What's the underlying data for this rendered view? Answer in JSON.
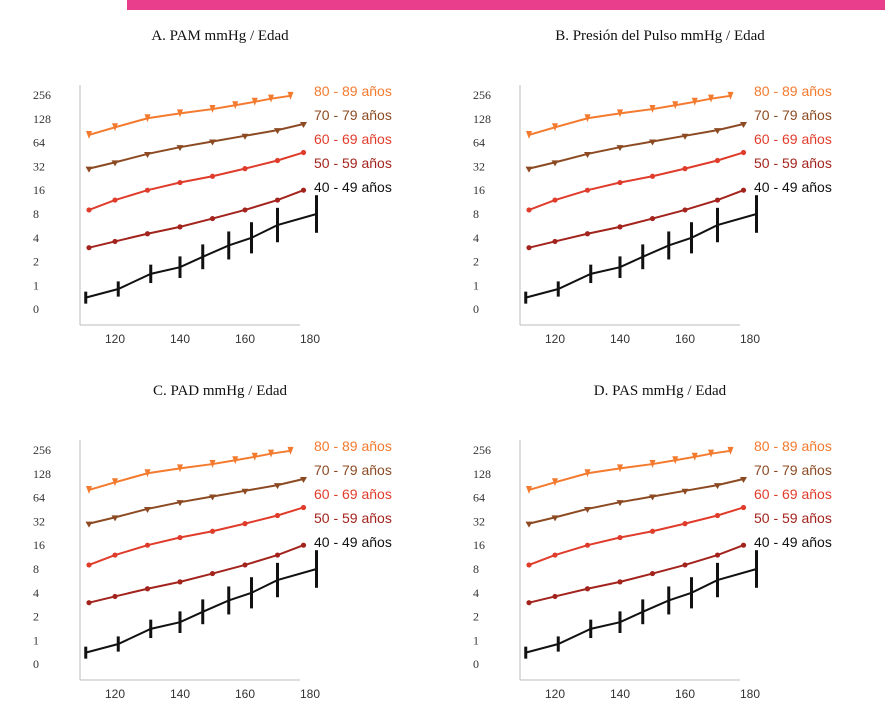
{
  "top_bar_color": "#e83e8c",
  "chart_data": [
    {
      "type": "line",
      "title": "A. PAM mmHg / Edad",
      "xlabel": "",
      "ylabel": "",
      "x_ticks": [
        120,
        140,
        160,
        180
      ],
      "y_ticks": [
        "0",
        "1",
        "2",
        "4",
        "8",
        "16",
        "32",
        "64",
        "128",
        "256"
      ],
      "xlim": [
        110,
        190
      ],
      "series": [
        {
          "name": "80 - 89 años",
          "color": "#f47a2e",
          "x": [
            112,
            120,
            130,
            140,
            150,
            157,
            163,
            168,
            174
          ],
          "y": [
            80,
            100,
            130,
            150,
            170,
            190,
            210,
            230,
            250
          ]
        },
        {
          "name": "70 - 79 años",
          "color": "#8c4a22",
          "x": [
            112,
            120,
            130,
            140,
            150,
            160,
            170,
            178
          ],
          "y": [
            30,
            36,
            46,
            56,
            66,
            78,
            92,
            110
          ]
        },
        {
          "name": "60 - 69 años",
          "color": "#e03c2b",
          "x": [
            112,
            120,
            130,
            140,
            150,
            160,
            170,
            178
          ],
          "y": [
            9,
            12,
            16,
            20,
            24,
            30,
            38,
            48
          ]
        },
        {
          "name": "50 - 59 años",
          "color": "#a3231d",
          "x": [
            112,
            120,
            130,
            140,
            150,
            160,
            170,
            178
          ],
          "y": [
            3,
            3.6,
            4.5,
            5.5,
            7,
            9,
            12,
            16
          ]
        },
        {
          "name": "40 - 49 años",
          "color": "#111111",
          "x": [
            111,
            121,
            131,
            140,
            147,
            155,
            162,
            170,
            182
          ],
          "y": [
            0.7,
            0.9,
            1.4,
            1.7,
            2.3,
            3.2,
            4.0,
            5.8,
            8.0
          ]
        }
      ]
    },
    {
      "type": "line",
      "title": "B. Presión del Pulso mmHg / Edad",
      "xlabel": "",
      "ylabel": "",
      "x_ticks": [
        120,
        140,
        160,
        180
      ],
      "y_ticks": [
        "0",
        "1",
        "2",
        "4",
        "8",
        "16",
        "32",
        "64",
        "128",
        "256"
      ],
      "xlim": [
        110,
        190
      ],
      "series": [
        {
          "name": "80 - 89 años",
          "color": "#f47a2e",
          "x": [
            112,
            120,
            130,
            140,
            150,
            157,
            163,
            168,
            174
          ],
          "y": [
            80,
            100,
            130,
            150,
            170,
            190,
            210,
            230,
            250
          ]
        },
        {
          "name": "70 - 79 años",
          "color": "#8c4a22",
          "x": [
            112,
            120,
            130,
            140,
            150,
            160,
            170,
            178
          ],
          "y": [
            30,
            36,
            46,
            56,
            66,
            78,
            92,
            110
          ]
        },
        {
          "name": "60 - 69 años",
          "color": "#e03c2b",
          "x": [
            112,
            120,
            130,
            140,
            150,
            160,
            170,
            178
          ],
          "y": [
            9,
            12,
            16,
            20,
            24,
            30,
            38,
            48
          ]
        },
        {
          "name": "50 - 59 años",
          "color": "#a3231d",
          "x": [
            112,
            120,
            130,
            140,
            150,
            160,
            170,
            178
          ],
          "y": [
            3,
            3.6,
            4.5,
            5.5,
            7,
            9,
            12,
            16
          ]
        },
        {
          "name": "40 - 49 años",
          "color": "#111111",
          "x": [
            111,
            121,
            131,
            140,
            147,
            155,
            162,
            170,
            182
          ],
          "y": [
            0.7,
            0.9,
            1.4,
            1.7,
            2.3,
            3.2,
            4.0,
            5.8,
            8.0
          ]
        }
      ]
    },
    {
      "type": "line",
      "title": "C. PAD mmHg / Edad",
      "xlabel": "",
      "ylabel": "",
      "x_ticks": [
        120,
        140,
        160,
        180
      ],
      "y_ticks": [
        "0",
        "1",
        "2",
        "4",
        "8",
        "16",
        "32",
        "64",
        "128",
        "256"
      ],
      "xlim": [
        110,
        190
      ],
      "series": [
        {
          "name": "80 - 89 años",
          "color": "#f47a2e",
          "x": [
            112,
            120,
            130,
            140,
            150,
            157,
            163,
            168,
            174
          ],
          "y": [
            80,
            100,
            130,
            150,
            170,
            190,
            210,
            230,
            250
          ]
        },
        {
          "name": "70 - 79 años",
          "color": "#8c4a22",
          "x": [
            112,
            120,
            130,
            140,
            150,
            160,
            170,
            178
          ],
          "y": [
            30,
            36,
            46,
            56,
            66,
            78,
            92,
            110
          ]
        },
        {
          "name": "60 - 69 años",
          "color": "#e03c2b",
          "x": [
            112,
            120,
            130,
            140,
            150,
            160,
            170,
            178
          ],
          "y": [
            9,
            12,
            16,
            20,
            24,
            30,
            38,
            48
          ]
        },
        {
          "name": "50 - 59 años",
          "color": "#a3231d",
          "x": [
            112,
            120,
            130,
            140,
            150,
            160,
            170,
            178
          ],
          "y": [
            3,
            3.6,
            4.5,
            5.5,
            7,
            9,
            12,
            16
          ]
        },
        {
          "name": "40 - 49 años",
          "color": "#111111",
          "x": [
            111,
            121,
            131,
            140,
            147,
            155,
            162,
            170,
            182
          ],
          "y": [
            0.7,
            0.9,
            1.4,
            1.7,
            2.3,
            3.2,
            4.0,
            5.8,
            8.0
          ]
        }
      ]
    },
    {
      "type": "line",
      "title": "D. PAS mmHg / Edad",
      "xlabel": "",
      "ylabel": "",
      "x_ticks": [
        120,
        140,
        160,
        180
      ],
      "y_ticks": [
        "0",
        "1",
        "2",
        "4",
        "8",
        "16",
        "32",
        "64",
        "128",
        "256"
      ],
      "xlim": [
        110,
        190
      ],
      "series": [
        {
          "name": "80 - 89 años",
          "color": "#f47a2e",
          "x": [
            112,
            120,
            130,
            140,
            150,
            157,
            163,
            168,
            174
          ],
          "y": [
            80,
            100,
            130,
            150,
            170,
            190,
            210,
            230,
            250
          ]
        },
        {
          "name": "70 - 79 años",
          "color": "#8c4a22",
          "x": [
            112,
            120,
            130,
            140,
            150,
            160,
            170,
            178
          ],
          "y": [
            30,
            36,
            46,
            56,
            66,
            78,
            92,
            110
          ]
        },
        {
          "name": "60 - 69 años",
          "color": "#e03c2b",
          "x": [
            112,
            120,
            130,
            140,
            150,
            160,
            170,
            178
          ],
          "y": [
            9,
            12,
            16,
            20,
            24,
            30,
            38,
            48
          ]
        },
        {
          "name": "50 - 59 años",
          "color": "#a3231d",
          "x": [
            112,
            120,
            130,
            140,
            150,
            160,
            170,
            178
          ],
          "y": [
            3,
            3.6,
            4.5,
            5.5,
            7,
            9,
            12,
            16
          ]
        },
        {
          "name": "40 - 49 años",
          "color": "#111111",
          "x": [
            111,
            121,
            131,
            140,
            147,
            155,
            162,
            170,
            182
          ],
          "y": [
            0.7,
            0.9,
            1.4,
            1.7,
            2.3,
            3.2,
            4.0,
            5.8,
            8.0
          ]
        }
      ]
    }
  ]
}
